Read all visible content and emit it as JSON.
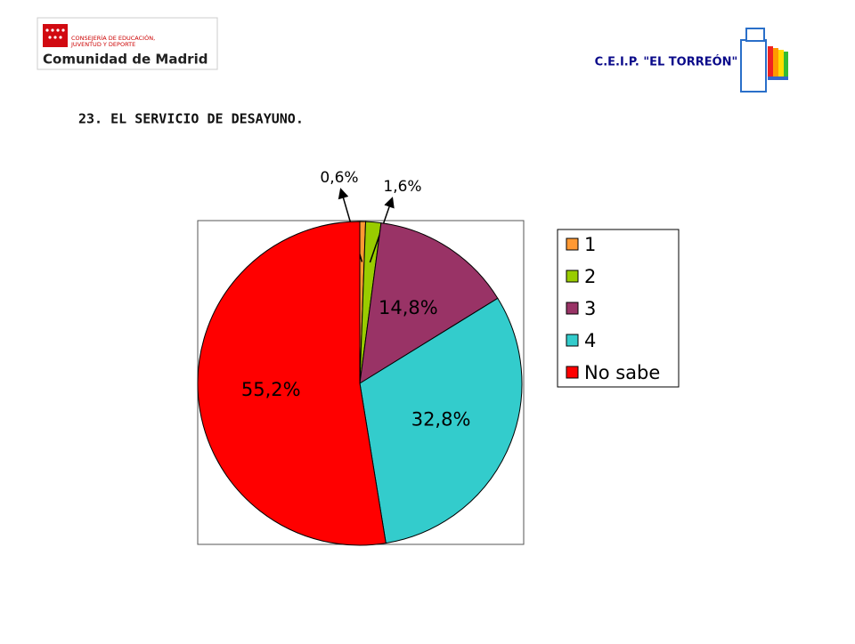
{
  "header": {
    "org_line1": "CONSEJERÍA DE EDUCACIÓN,",
    "org_line2": "JUVENTUD Y DEPORTE",
    "org_name": "Comunidad de Madrid",
    "school": "C.E.I.P. \"EL TORREÓN\""
  },
  "chart_data": {
    "type": "pie",
    "title": "23. EL SERVICIO DE DESAYUNO.",
    "categories": [
      "1",
      "2",
      "3",
      "4",
      "No sabe"
    ],
    "values": [
      0.6,
      1.6,
      14.8,
      32.8,
      55.2
    ],
    "value_labels": [
      "0,6%",
      "1,6%",
      "14,8%",
      "32,8%",
      "55,2%"
    ],
    "colors": [
      "#ff9933",
      "#99cc00",
      "#993366",
      "#33cccc",
      "#ff0000"
    ],
    "legend": "right"
  }
}
